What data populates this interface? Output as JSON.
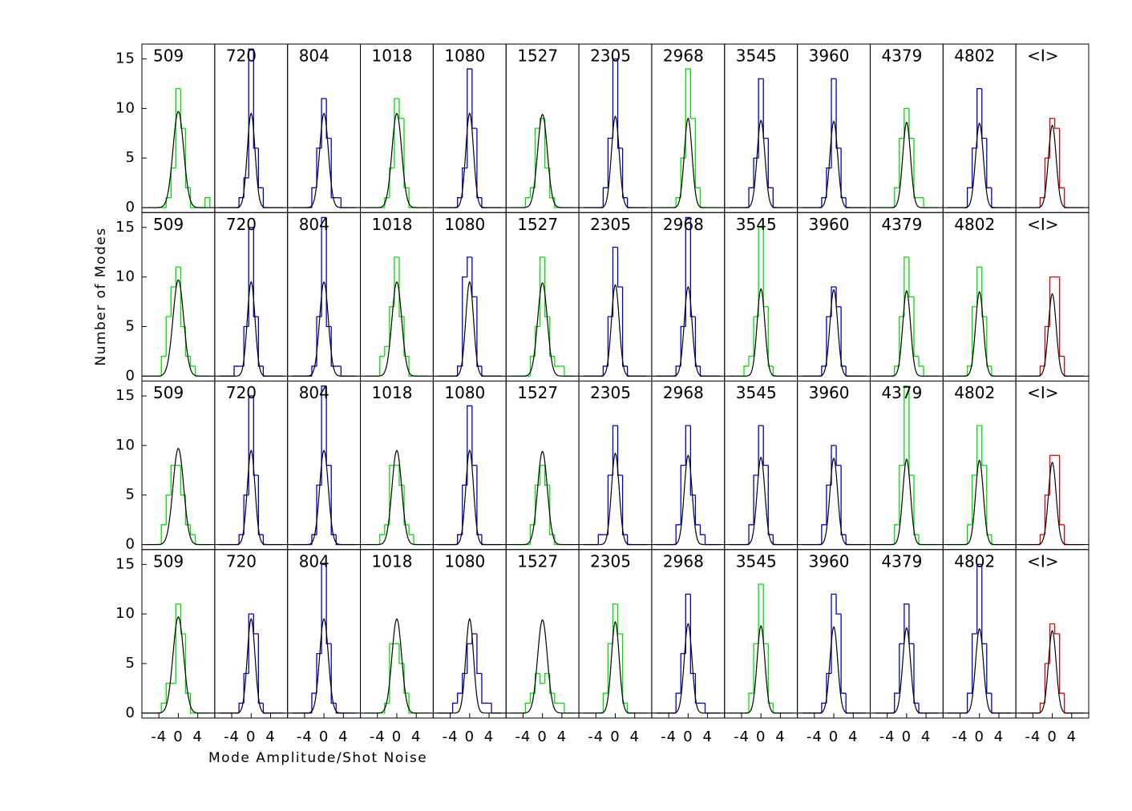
{
  "chart_data": {
    "type": "histogram",
    "ylabel": "Number of Modes",
    "xlabel": "Mode Amplitude/Shot Noise",
    "xlim": [
      -7.5,
      7.5
    ],
    "xticks": [
      -4,
      0,
      4
    ],
    "ylim": [
      -0.5,
      16.5
    ],
    "yticks": [
      0,
      5,
      10,
      15
    ],
    "bins": [
      -6.5,
      -5.5,
      -4.5,
      -3.5,
      -2.5,
      -1.5,
      -0.5,
      0.5,
      1.5,
      2.5,
      3.5,
      4.5,
      5.5,
      6.5
    ],
    "fit_color": "#000000",
    "rows": [
      [
        {
          "title": "509",
          "color": "#00e000",
          "counts": [
            0,
            0,
            0,
            0,
            1,
            4,
            12,
            8,
            2,
            0,
            0,
            0,
            1
          ],
          "fit_peak": 9.7,
          "fit_sigma": 1.1
        },
        {
          "title": "720",
          "color": "#0000c8",
          "counts": [
            0,
            0,
            0,
            0,
            1,
            3,
            16,
            6,
            2,
            0,
            0,
            0,
            0
          ],
          "fit_peak": 9.5,
          "fit_sigma": 0.8
        },
        {
          "title": "804",
          "color": "#0000c8",
          "counts": [
            0,
            0,
            0,
            0,
            2,
            6,
            11,
            7,
            1,
            1,
            0,
            0,
            0
          ],
          "fit_peak": 9.5,
          "fit_sigma": 0.9
        },
        {
          "title": "1018",
          "color": "#00e000",
          "counts": [
            0,
            0,
            0,
            0,
            1,
            4,
            11,
            9,
            2,
            0,
            0,
            0,
            0
          ],
          "fit_peak": 9.5,
          "fit_sigma": 1.0
        },
        {
          "title": "1080",
          "color": "#0000c8",
          "counts": [
            0,
            0,
            0,
            0,
            1,
            4,
            14,
            8,
            1,
            0,
            0,
            0,
            0
          ],
          "fit_peak": 9.5,
          "fit_sigma": 0.8
        },
        {
          "title": "1527",
          "color": "#00e000",
          "counts": [
            0,
            0,
            0,
            1,
            2,
            8,
            9,
            4,
            1,
            0,
            0,
            0,
            0
          ],
          "fit_peak": 9.4,
          "fit_sigma": 1.0
        },
        {
          "title": "2305",
          "color": "#0000c8",
          "counts": [
            0,
            0,
            0,
            0,
            2,
            7,
            15,
            6,
            1,
            0,
            0,
            0,
            0
          ],
          "fit_peak": 9.2,
          "fit_sigma": 0.8
        },
        {
          "title": "2968",
          "color": "#00e000",
          "counts": [
            0,
            0,
            0,
            0,
            1,
            5,
            14,
            9,
            2,
            0,
            0,
            0,
            0
          ],
          "fit_peak": 9.0,
          "fit_sigma": 0.8
        },
        {
          "title": "3545",
          "color": "#0000c8",
          "counts": [
            0,
            0,
            0,
            0,
            2,
            5,
            13,
            7,
            2,
            0,
            0,
            0,
            0
          ],
          "fit_peak": 8.8,
          "fit_sigma": 0.8
        },
        {
          "title": "3960",
          "color": "#0000c8",
          "counts": [
            0,
            0,
            0,
            0,
            1,
            4,
            13,
            6,
            1,
            0,
            0,
            0,
            0
          ],
          "fit_peak": 8.7,
          "fit_sigma": 0.8
        },
        {
          "title": "4379",
          "color": "#00e000",
          "counts": [
            0,
            0,
            0,
            0,
            2,
            7,
            10,
            7,
            1,
            1,
            0,
            0,
            0
          ],
          "fit_peak": 8.6,
          "fit_sigma": 0.8
        },
        {
          "title": "4802",
          "color": "#0000c8",
          "counts": [
            0,
            0,
            0,
            0,
            2,
            6,
            12,
            7,
            2,
            0,
            0,
            0,
            0
          ],
          "fit_peak": 8.5,
          "fit_sigma": 0.8
        },
        {
          "title": "<I>",
          "color": "#e00000",
          "counts": [
            0,
            0,
            0,
            0,
            1,
            5,
            9,
            8,
            2,
            0,
            0,
            0,
            0
          ],
          "fit_peak": 8.3,
          "fit_sigma": 0.8
        }
      ],
      [
        {
          "title": "509",
          "color": "#00e000",
          "counts": [
            0,
            0,
            0,
            2,
            6,
            9,
            11,
            5,
            2,
            1,
            0,
            0,
            0
          ],
          "fit_peak": 9.7,
          "fit_sigma": 1.1
        },
        {
          "title": "720",
          "color": "#0000c8",
          "counts": [
            0,
            0,
            0,
            1,
            1,
            5,
            15,
            6,
            1,
            0,
            0,
            0,
            0
          ],
          "fit_peak": 9.5,
          "fit_sigma": 0.8
        },
        {
          "title": "804",
          "color": "#0000c8",
          "counts": [
            0,
            0,
            0,
            0,
            1,
            6,
            16,
            5,
            1,
            1,
            0,
            0,
            0
          ],
          "fit_peak": 9.5,
          "fit_sigma": 0.9
        },
        {
          "title": "1018",
          "color": "#00e000",
          "counts": [
            0,
            0,
            0,
            2,
            3,
            7,
            12,
            6,
            2,
            0,
            0,
            0,
            0
          ],
          "fit_peak": 9.5,
          "fit_sigma": 1.0
        },
        {
          "title": "1080",
          "color": "#0000c8",
          "counts": [
            0,
            0,
            0,
            0,
            1,
            10,
            12,
            8,
            1,
            0,
            0,
            0,
            0
          ],
          "fit_peak": 9.5,
          "fit_sigma": 0.8
        },
        {
          "title": "1527",
          "color": "#00e000",
          "counts": [
            0,
            0,
            0,
            0,
            2,
            5,
            12,
            6,
            2,
            1,
            1,
            0,
            0
          ],
          "fit_peak": 9.4,
          "fit_sigma": 1.0
        },
        {
          "title": "2305",
          "color": "#0000c8",
          "counts": [
            0,
            0,
            0,
            0,
            1,
            6,
            13,
            9,
            1,
            0,
            0,
            0,
            0
          ],
          "fit_peak": 9.2,
          "fit_sigma": 0.8
        },
        {
          "title": "2968",
          "color": "#0000c8",
          "counts": [
            0,
            0,
            0,
            0,
            1,
            5,
            16,
            6,
            1,
            0,
            0,
            0,
            0
          ],
          "fit_peak": 9.0,
          "fit_sigma": 0.8
        },
        {
          "title": "3545",
          "color": "#00e000",
          "counts": [
            0,
            0,
            0,
            1,
            2,
            6,
            15,
            7,
            1,
            0,
            0,
            0,
            0
          ],
          "fit_peak": 8.8,
          "fit_sigma": 0.8
        },
        {
          "title": "3960",
          "color": "#0000c8",
          "counts": [
            0,
            0,
            0,
            0,
            1,
            6,
            9,
            7,
            1,
            0,
            0,
            0,
            0
          ],
          "fit_peak": 8.7,
          "fit_sigma": 0.8
        },
        {
          "title": "4379",
          "color": "#00e000",
          "counts": [
            0,
            0,
            0,
            0,
            1,
            6,
            12,
            8,
            2,
            1,
            0,
            0,
            0
          ],
          "fit_peak": 8.6,
          "fit_sigma": 0.8
        },
        {
          "title": "4802",
          "color": "#00e000",
          "counts": [
            0,
            0,
            0,
            0,
            1,
            7,
            11,
            6,
            1,
            0,
            0,
            0,
            0
          ],
          "fit_peak": 8.5,
          "fit_sigma": 0.8
        },
        {
          "title": "<I>",
          "color": "#e00000",
          "counts": [
            0,
            0,
            0,
            0,
            1,
            5,
            10,
            10,
            2,
            0,
            0,
            0,
            0
          ],
          "fit_peak": 8.3,
          "fit_sigma": 0.8
        }
      ],
      [
        {
          "title": "509",
          "color": "#00e000",
          "counts": [
            0,
            0,
            0,
            2,
            5,
            8,
            8,
            5,
            2,
            1,
            0,
            0,
            0
          ],
          "fit_peak": 9.7,
          "fit_sigma": 1.1
        },
        {
          "title": "720",
          "color": "#0000c8",
          "counts": [
            0,
            0,
            0,
            0,
            1,
            5,
            15,
            7,
            1,
            0,
            0,
            0,
            0
          ],
          "fit_peak": 9.5,
          "fit_sigma": 0.8
        },
        {
          "title": "804",
          "color": "#0000c8",
          "counts": [
            0,
            0,
            0,
            0,
            1,
            6,
            16,
            8,
            1,
            0,
            0,
            0,
            0
          ],
          "fit_peak": 9.5,
          "fit_sigma": 0.9
        },
        {
          "title": "1018",
          "color": "#00e000",
          "counts": [
            0,
            0,
            0,
            1,
            2,
            8,
            8,
            6,
            2,
            1,
            0,
            0,
            0
          ],
          "fit_peak": 9.5,
          "fit_sigma": 1.0
        },
        {
          "title": "1080",
          "color": "#0000c8",
          "counts": [
            0,
            0,
            0,
            0,
            1,
            6,
            14,
            8,
            1,
            0,
            0,
            0,
            0
          ],
          "fit_peak": 9.5,
          "fit_sigma": 0.8
        },
        {
          "title": "1527",
          "color": "#00e000",
          "counts": [
            0,
            0,
            0,
            0,
            2,
            6,
            8,
            6,
            1,
            0,
            0,
            0,
            0
          ],
          "fit_peak": 9.4,
          "fit_sigma": 1.0
        },
        {
          "title": "2305",
          "color": "#0000c8",
          "counts": [
            0,
            0,
            0,
            1,
            1,
            7,
            12,
            7,
            1,
            0,
            0,
            0,
            0
          ],
          "fit_peak": 9.2,
          "fit_sigma": 0.8
        },
        {
          "title": "2968",
          "color": "#0000c8",
          "counts": [
            0,
            0,
            0,
            0,
            2,
            8,
            12,
            5,
            2,
            1,
            0,
            0,
            0
          ],
          "fit_peak": 9.0,
          "fit_sigma": 0.8
        },
        {
          "title": "3545",
          "color": "#0000c8",
          "counts": [
            0,
            0,
            0,
            0,
            2,
            7,
            12,
            8,
            1,
            0,
            0,
            0,
            0
          ],
          "fit_peak": 8.8,
          "fit_sigma": 0.8
        },
        {
          "title": "3960",
          "color": "#0000c8",
          "counts": [
            0,
            0,
            0,
            0,
            2,
            6,
            10,
            8,
            1,
            0,
            0,
            0,
            0
          ],
          "fit_peak": 8.7,
          "fit_sigma": 0.8
        },
        {
          "title": "4379",
          "color": "#00e000",
          "counts": [
            0,
            0,
            0,
            0,
            2,
            8,
            16,
            7,
            1,
            0,
            0,
            0,
            0
          ],
          "fit_peak": 8.6,
          "fit_sigma": 0.8
        },
        {
          "title": "4802",
          "color": "#00e000",
          "counts": [
            0,
            0,
            0,
            0,
            2,
            7,
            12,
            8,
            1,
            0,
            0,
            0,
            0
          ],
          "fit_peak": 8.5,
          "fit_sigma": 0.8
        },
        {
          "title": "<I>",
          "color": "#e00000",
          "counts": [
            0,
            0,
            0,
            0,
            1,
            5,
            9,
            9,
            2,
            0,
            0,
            0,
            0
          ],
          "fit_peak": 8.3,
          "fit_sigma": 0.8
        }
      ],
      [
        {
          "title": "509",
          "color": "#00e000",
          "counts": [
            0,
            0,
            0,
            1,
            3,
            3,
            11,
            8,
            2,
            0,
            0,
            0,
            0
          ],
          "fit_peak": 9.7,
          "fit_sigma": 1.1
        },
        {
          "title": "720",
          "color": "#0000c8",
          "counts": [
            0,
            0,
            0,
            0,
            1,
            4,
            10,
            8,
            1,
            0,
            0,
            0,
            0
          ],
          "fit_peak": 9.5,
          "fit_sigma": 0.8
        },
        {
          "title": "804",
          "color": "#0000c8",
          "counts": [
            0,
            0,
            0,
            0,
            2,
            6,
            15,
            7,
            1,
            0,
            0,
            0,
            0
          ],
          "fit_peak": 9.5,
          "fit_sigma": 0.9
        },
        {
          "title": "1018",
          "color": "#00e000",
          "counts": [
            0,
            0,
            0,
            0,
            1,
            7,
            7,
            5,
            2,
            0,
            0,
            0,
            0
          ],
          "fit_peak": 9.5,
          "fit_sigma": 1.0
        },
        {
          "title": "1080",
          "color": "#0000c8",
          "counts": [
            0,
            0,
            0,
            1,
            2,
            4,
            7,
            8,
            4,
            1,
            1,
            0,
            0
          ],
          "fit_peak": 9.5,
          "fit_sigma": 0.8
        },
        {
          "title": "1527",
          "color": "#00e000",
          "counts": [
            0,
            0,
            0,
            1,
            2,
            4,
            3,
            4,
            2,
            1,
            1,
            0,
            0
          ],
          "fit_peak": 9.4,
          "fit_sigma": 1.0
        },
        {
          "title": "2305",
          "color": "#00e000",
          "counts": [
            0,
            0,
            0,
            0,
            2,
            7,
            11,
            8,
            1,
            0,
            0,
            0,
            0
          ],
          "fit_peak": 9.2,
          "fit_sigma": 0.8
        },
        {
          "title": "2968",
          "color": "#0000c8",
          "counts": [
            0,
            0,
            0,
            0,
            2,
            6,
            12,
            4,
            1,
            1,
            0,
            0,
            0
          ],
          "fit_peak": 9.0,
          "fit_sigma": 0.8
        },
        {
          "title": "3545",
          "color": "#00e000",
          "counts": [
            0,
            0,
            0,
            0,
            2,
            7,
            13,
            7,
            1,
            0,
            0,
            0,
            0
          ],
          "fit_peak": 8.8,
          "fit_sigma": 0.8
        },
        {
          "title": "3960",
          "color": "#0000c8",
          "counts": [
            0,
            0,
            0,
            0,
            1,
            4,
            12,
            10,
            2,
            0,
            0,
            0,
            0
          ],
          "fit_peak": 8.7,
          "fit_sigma": 0.8
        },
        {
          "title": "4379",
          "color": "#0000c8",
          "counts": [
            0,
            0,
            0,
            0,
            2,
            7,
            11,
            7,
            1,
            0,
            0,
            0,
            0
          ],
          "fit_peak": 8.6,
          "fit_sigma": 0.8
        },
        {
          "title": "4802",
          "color": "#0000c8",
          "counts": [
            0,
            0,
            0,
            0,
            2,
            8,
            15,
            7,
            2,
            0,
            0,
            0,
            0
          ],
          "fit_peak": 8.5,
          "fit_sigma": 0.8
        },
        {
          "title": "<I>",
          "color": "#e00000",
          "counts": [
            0,
            0,
            0,
            0,
            1,
            5,
            9,
            8,
            2,
            0,
            0,
            0,
            0
          ],
          "fit_peak": 8.3,
          "fit_sigma": 0.8
        }
      ]
    ]
  }
}
